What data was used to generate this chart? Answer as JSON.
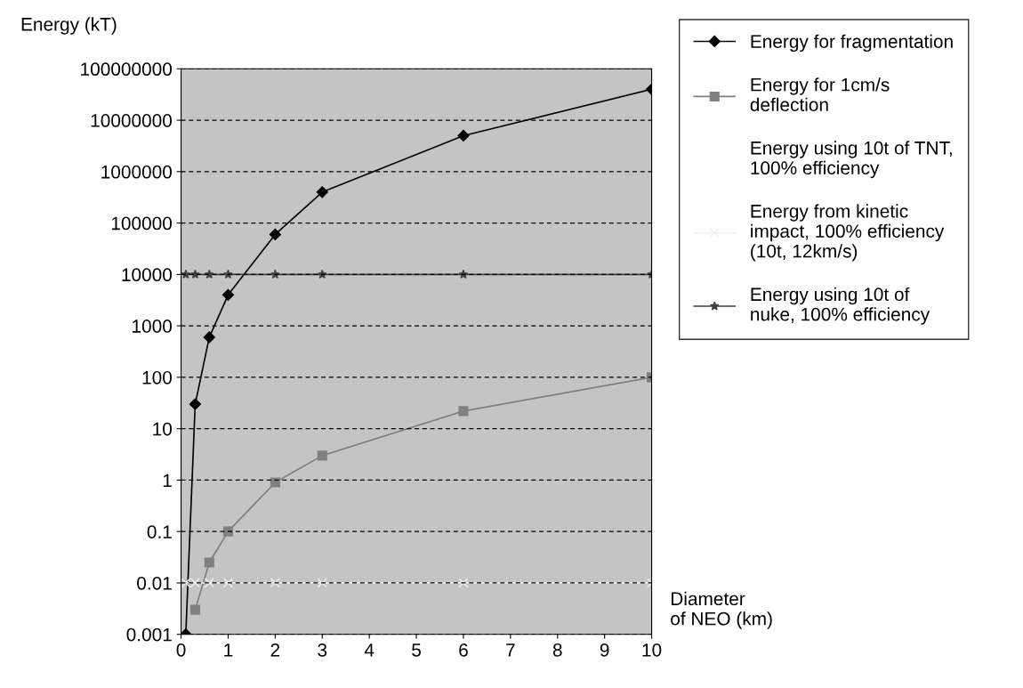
{
  "chart_data": {
    "type": "line",
    "ylabel": "Energy (kT)",
    "xlabel": "Diameter\nof NEO (km)",
    "x": [
      0.1,
      0.3,
      0.6,
      1,
      2,
      3,
      6,
      10
    ],
    "series": [
      {
        "name": "Energy for fragmentation",
        "color": "#000000",
        "marker": "diamond",
        "values": [
          0.001,
          30,
          600,
          4000,
          60000,
          400000,
          5000000,
          40000000
        ]
      },
      {
        "name": "Energy for 1cm/s deflection",
        "color": "#808080",
        "marker": "square",
        "values": [
          null,
          0.003,
          0.025,
          0.1,
          0.9,
          3,
          22,
          100
        ]
      },
      {
        "name": "Energy using 10t of TNT, 100% efficiency",
        "marker": "none",
        "values": [
          null,
          null,
          null,
          null,
          null,
          null,
          null,
          null
        ]
      },
      {
        "name": "Energy from kinetic impact, 100% efficiency (10t, 12km/s)",
        "color": "#f0f0f0",
        "marker": "cross",
        "values": [
          0.01,
          0.01,
          0.01,
          0.01,
          0.01,
          0.01,
          0.01,
          0.01
        ]
      },
      {
        "name": "Energy using 10t of nuke, 100% efficiency",
        "color": "#404040",
        "marker": "star",
        "values": [
          10000,
          10000,
          10000,
          10000,
          10000,
          10000,
          10000,
          10000
        ]
      }
    ],
    "log": "y",
    "xlim": [
      0,
      10
    ],
    "xticks": [
      0,
      1,
      2,
      3,
      4,
      5,
      6,
      7,
      8,
      9,
      10
    ],
    "ylim": [
      0.001,
      100000000
    ],
    "yticks": [
      0.001,
      0.01,
      0.1,
      1,
      10,
      100,
      1000,
      10000,
      100000,
      1000000,
      10000000,
      100000000
    ],
    "grid": "y",
    "legend": "right",
    "line_style": "solid"
  }
}
